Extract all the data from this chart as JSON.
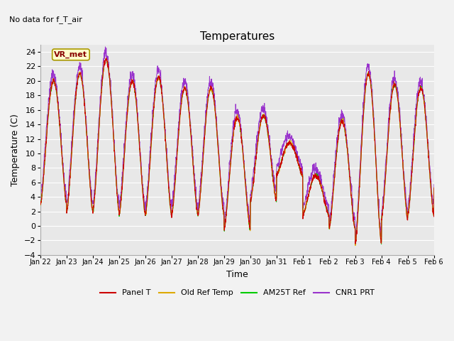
{
  "title": "Temperatures",
  "xlabel": "Time",
  "ylabel": "Temperature (C)",
  "top_left_text": "No data for f_T_air",
  "annotation_text": "VR_met",
  "ylim": [
    -4,
    25
  ],
  "yticks": [
    -4,
    -2,
    0,
    2,
    4,
    6,
    8,
    10,
    12,
    14,
    16,
    18,
    20,
    22,
    24
  ],
  "xtick_labels": [
    "Jan 22",
    "Jan 23",
    "Jan 24",
    "Jan 25",
    "Jan 26",
    "Jan 27",
    "Jan 28",
    "Jan 29",
    "Jan 30",
    "Jan 31",
    "Feb 1",
    "Feb 2",
    "Feb 3",
    "Feb 4",
    "Feb 5",
    "Feb 6"
  ],
  "legend": [
    {
      "label": "Panel T",
      "color": "#cc0000"
    },
    {
      "label": "Old Ref Temp",
      "color": "#ddaa00"
    },
    {
      "label": "AM25T Ref",
      "color": "#00cc00"
    },
    {
      "label": "CNR1 PRT",
      "color": "#9933cc"
    }
  ],
  "background_color": "#e8e8e8",
  "fig_background_color": "#f2f2f2",
  "grid_color": "#ffffff",
  "title_fontsize": 11,
  "axis_label_fontsize": 9,
  "tick_fontsize": 8
}
